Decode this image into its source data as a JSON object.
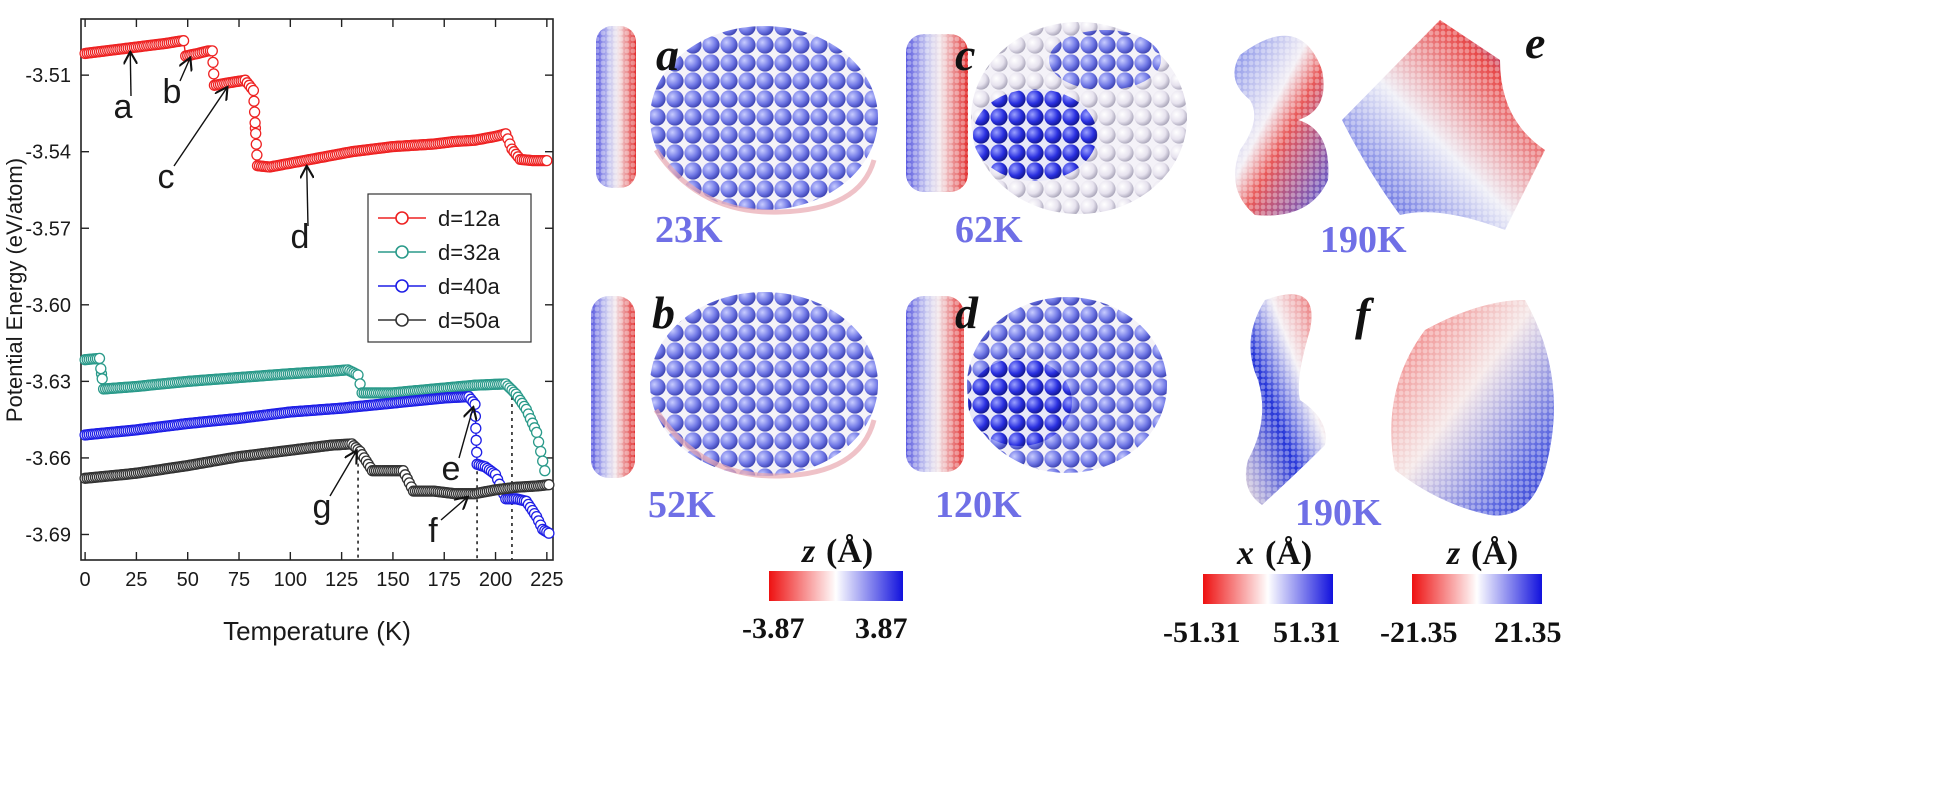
{
  "chart_data": {
    "type": "scatter",
    "xlabel": "Temperature (K)",
    "ylabel": "Potential Energy (eV/atom)",
    "xlim": [
      -2,
      228
    ],
    "ylim": [
      -3.7,
      -3.488
    ],
    "xticks": [
      "0",
      "25",
      "50",
      "75",
      "100",
      "125",
      "150",
      "175",
      "200",
      "225"
    ],
    "yticks": [
      "-3.51",
      "-3.54",
      "-3.57",
      "-3.60",
      "-3.63",
      "-3.66",
      "-3.69"
    ],
    "legend_position": "center-right",
    "series": [
      {
        "name": "d=12a",
        "color": "#ee2222",
        "points": [
          [
            0,
            -3.5015
          ],
          [
            10,
            -3.5005
          ],
          [
            20,
            -3.4995
          ],
          [
            30,
            -3.4985
          ],
          [
            40,
            -3.4975
          ],
          [
            45,
            -3.4968
          ],
          [
            48,
            -3.4965
          ],
          [
            49,
            -3.5025
          ],
          [
            55,
            -3.5015
          ],
          [
            60,
            -3.5005
          ],
          [
            62,
            -3.5005
          ],
          [
            63,
            -3.514
          ],
          [
            70,
            -3.513
          ],
          [
            78,
            -3.512
          ],
          [
            82,
            -3.516
          ],
          [
            84,
            -3.5455
          ],
          [
            90,
            -3.546
          ],
          [
            100,
            -3.5445
          ],
          [
            110,
            -3.543
          ],
          [
            120,
            -3.5415
          ],
          [
            130,
            -3.54
          ],
          [
            140,
            -3.539
          ],
          [
            150,
            -3.538
          ],
          [
            160,
            -3.5375
          ],
          [
            170,
            -3.537
          ],
          [
            180,
            -3.536
          ],
          [
            190,
            -3.5355
          ],
          [
            200,
            -3.534
          ],
          [
            205,
            -3.533
          ],
          [
            208,
            -3.539
          ],
          [
            212,
            -3.543
          ],
          [
            218,
            -3.5435
          ],
          [
            225,
            -3.5435
          ]
        ]
      },
      {
        "name": "d=32a",
        "color": "#2a9a8a",
        "points": [
          [
            0,
            -3.6215
          ],
          [
            7,
            -3.621
          ],
          [
            9,
            -3.633
          ],
          [
            25,
            -3.632
          ],
          [
            50,
            -3.63
          ],
          [
            75,
            -3.6285
          ],
          [
            100,
            -3.627
          ],
          [
            120,
            -3.626
          ],
          [
            128,
            -3.6255
          ],
          [
            133,
            -3.6275
          ],
          [
            135,
            -3.6345
          ],
          [
            150,
            -3.6345
          ],
          [
            170,
            -3.633
          ],
          [
            190,
            -3.6315
          ],
          [
            205,
            -3.631
          ],
          [
            210,
            -3.635
          ],
          [
            215,
            -3.641
          ],
          [
            220,
            -3.65
          ],
          [
            224,
            -3.665
          ]
        ]
      },
      {
        "name": "d=40a",
        "color": "#1f1fe6",
        "points": [
          [
            0,
            -3.651
          ],
          [
            25,
            -3.649
          ],
          [
            50,
            -3.6465
          ],
          [
            75,
            -3.6445
          ],
          [
            100,
            -3.642
          ],
          [
            125,
            -3.6405
          ],
          [
            150,
            -3.6385
          ],
          [
            175,
            -3.6365
          ],
          [
            187,
            -3.636
          ],
          [
            190,
            -3.639
          ],
          [
            191,
            -3.6625
          ],
          [
            195,
            -3.6635
          ],
          [
            200,
            -3.6665
          ],
          [
            205,
            -3.676
          ],
          [
            210,
            -3.676
          ],
          [
            215,
            -3.677
          ],
          [
            220,
            -3.683
          ],
          [
            223,
            -3.688
          ],
          [
            226,
            -3.6895
          ]
        ]
      },
      {
        "name": "d=50a",
        "color": "#333333",
        "points": [
          [
            0,
            -3.668
          ],
          [
            25,
            -3.666
          ],
          [
            50,
            -3.663
          ],
          [
            75,
            -3.6595
          ],
          [
            100,
            -3.657
          ],
          [
            120,
            -3.655
          ],
          [
            130,
            -3.6545
          ],
          [
            134,
            -3.6575
          ],
          [
            140,
            -3.665
          ],
          [
            150,
            -3.665
          ],
          [
            155,
            -3.665
          ],
          [
            160,
            -3.673
          ],
          [
            170,
            -3.673
          ],
          [
            180,
            -3.674
          ],
          [
            190,
            -3.674
          ],
          [
            200,
            -3.6725
          ],
          [
            210,
            -3.6715
          ],
          [
            220,
            -3.671
          ],
          [
            226,
            -3.6705
          ]
        ]
      }
    ],
    "annotations": [
      {
        "label": "a",
        "point": [
          22,
          -3.4998
        ]
      },
      {
        "label": "b",
        "point": [
          51,
          -3.502
        ]
      },
      {
        "label": "c",
        "point": [
          69,
          -3.5135
        ]
      },
      {
        "label": "d",
        "point": [
          108,
          -3.5445
        ]
      },
      {
        "label": "e",
        "point": [
          189,
          -3.639
        ]
      },
      {
        "label": "f",
        "point": [
          186,
          -3.674
        ]
      },
      {
        "label": "g",
        "point": [
          132,
          -3.656
        ]
      }
    ],
    "vlines": [
      133,
      191,
      208
    ]
  },
  "panels": [
    {
      "letter": "a",
      "temperature": "23K"
    },
    {
      "letter": "b",
      "temperature": "52K"
    },
    {
      "letter": "c",
      "temperature": "62K"
    },
    {
      "letter": "d",
      "temperature": "120K"
    },
    {
      "letter": "e",
      "temperature": "190K"
    },
    {
      "letter": "f",
      "temperature": "190K"
    }
  ],
  "colorbars": [
    {
      "title_var": "z",
      "title_unit": "(Å)",
      "min": "-3.87",
      "max": "3.87"
    },
    {
      "title_var": "x",
      "title_unit": "(Å)",
      "min": "-51.31",
      "max": "51.31"
    },
    {
      "title_var": "z",
      "title_unit": "(Å)",
      "min": "-21.35",
      "max": "21.35"
    }
  ],
  "colors": {
    "negative": "#ee1111",
    "middle": "#ffffff",
    "positive": "#1111dd"
  }
}
